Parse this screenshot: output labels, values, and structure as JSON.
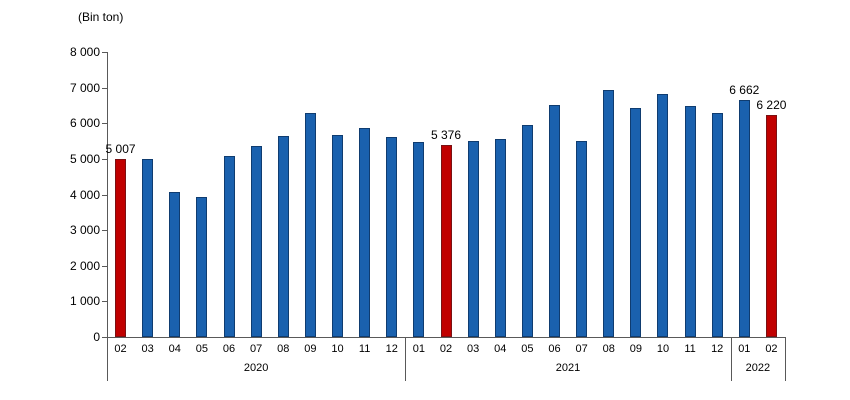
{
  "chart_data": {
    "type": "bar",
    "title": "(Bin ton)",
    "xlabel": "",
    "ylabel": "(Bin ton)",
    "ylim": [
      0,
      8000
    ],
    "ytick_step": 1000,
    "ytick_labels": [
      "0",
      "1 000",
      "2 000",
      "3 000",
      "4 000",
      "5 000",
      "6 000",
      "7 000",
      "8 000"
    ],
    "grid": false,
    "legend": "none",
    "colors": {
      "bar_fill": "#1A61AE",
      "bar_border": "#0F3C70",
      "highlight_fill": "#C00000",
      "highlight_border": "#7A1113",
      "axis": "#595959",
      "text": "#000000",
      "background": "#FFFFFF"
    },
    "groups": [
      {
        "year": "2020",
        "months": [
          "02",
          "03",
          "04",
          "05",
          "06",
          "07",
          "08",
          "09",
          "10",
          "11",
          "12"
        ]
      },
      {
        "year": "2021",
        "months": [
          "01",
          "02",
          "03",
          "04",
          "05",
          "06",
          "07",
          "08",
          "09",
          "10",
          "11",
          "12"
        ]
      },
      {
        "year": "2022",
        "months": [
          "01",
          "02"
        ]
      }
    ],
    "bars": [
      {
        "year": "2020",
        "month": "02",
        "value": 5007,
        "highlight": true,
        "data_label": "5 007"
      },
      {
        "year": "2020",
        "month": "03",
        "value": 4990,
        "highlight": false,
        "data_label": ""
      },
      {
        "year": "2020",
        "month": "04",
        "value": 4060,
        "highlight": false,
        "data_label": ""
      },
      {
        "year": "2020",
        "month": "05",
        "value": 3930,
        "highlight": false,
        "data_label": ""
      },
      {
        "year": "2020",
        "month": "06",
        "value": 5080,
        "highlight": false,
        "data_label": ""
      },
      {
        "year": "2020",
        "month": "07",
        "value": 5360,
        "highlight": false,
        "data_label": ""
      },
      {
        "year": "2020",
        "month": "08",
        "value": 5650,
        "highlight": false,
        "data_label": ""
      },
      {
        "year": "2020",
        "month": "09",
        "value": 6300,
        "highlight": false,
        "data_label": ""
      },
      {
        "year": "2020",
        "month": "10",
        "value": 5660,
        "highlight": false,
        "data_label": ""
      },
      {
        "year": "2020",
        "month": "11",
        "value": 5860,
        "highlight": false,
        "data_label": ""
      },
      {
        "year": "2020",
        "month": "12",
        "value": 5620,
        "highlight": false,
        "data_label": ""
      },
      {
        "year": "2021",
        "month": "01",
        "value": 5470,
        "highlight": false,
        "data_label": ""
      },
      {
        "year": "2021",
        "month": "02",
        "value": 5376,
        "highlight": true,
        "data_label": "5 376"
      },
      {
        "year": "2021",
        "month": "03",
        "value": 5510,
        "highlight": false,
        "data_label": ""
      },
      {
        "year": "2021",
        "month": "04",
        "value": 5550,
        "highlight": false,
        "data_label": ""
      },
      {
        "year": "2021",
        "month": "05",
        "value": 5950,
        "highlight": false,
        "data_label": ""
      },
      {
        "year": "2021",
        "month": "06",
        "value": 6500,
        "highlight": false,
        "data_label": ""
      },
      {
        "year": "2021",
        "month": "07",
        "value": 5490,
        "highlight": false,
        "data_label": ""
      },
      {
        "year": "2021",
        "month": "08",
        "value": 6930,
        "highlight": false,
        "data_label": ""
      },
      {
        "year": "2021",
        "month": "09",
        "value": 6440,
        "highlight": false,
        "data_label": ""
      },
      {
        "year": "2021",
        "month": "10",
        "value": 6820,
        "highlight": false,
        "data_label": ""
      },
      {
        "year": "2021",
        "month": "11",
        "value": 6490,
        "highlight": false,
        "data_label": ""
      },
      {
        "year": "2021",
        "month": "12",
        "value": 6290,
        "highlight": false,
        "data_label": ""
      },
      {
        "year": "2022",
        "month": "01",
        "value": 6662,
        "highlight": false,
        "data_label": "6 662"
      },
      {
        "year": "2022",
        "month": "02",
        "value": 6220,
        "highlight": true,
        "data_label": "6 220"
      }
    ]
  }
}
